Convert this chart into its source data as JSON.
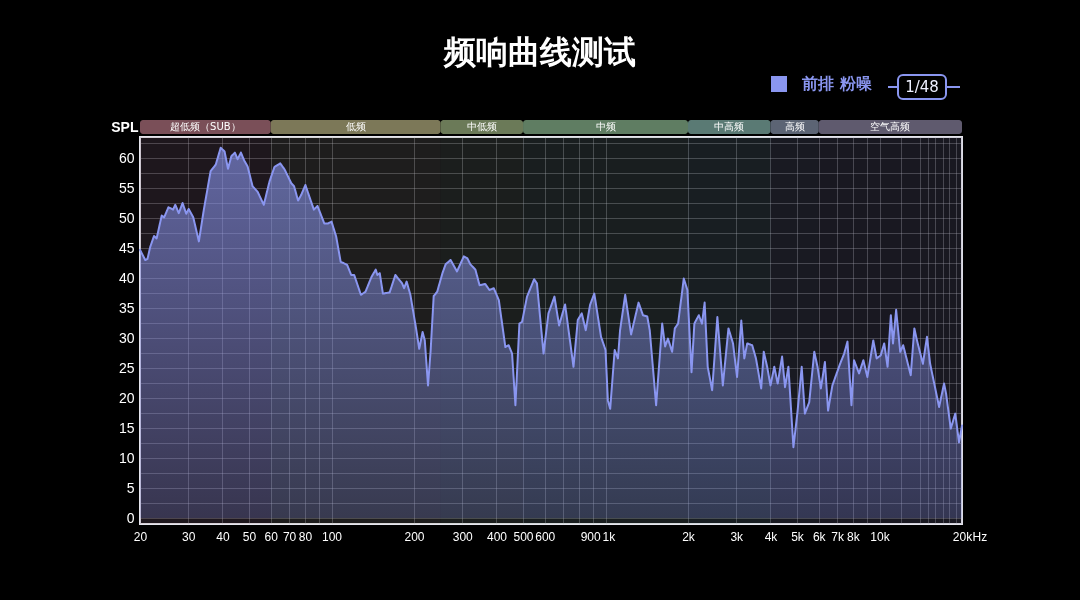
{
  "chart_data": {
    "type": "area",
    "title": "频响曲线测试",
    "ylabel": "SPL",
    "xlabel": "Hz",
    "x": [
      20,
      20.9,
      21.3,
      21.8,
      22.5,
      23.0,
      24.0,
      24.5,
      25.4,
      26.4,
      26.9,
      27.7,
      28.6,
      29.5,
      30.1,
      31.3,
      32.8,
      34.2,
      36.2,
      37.8,
      39.4,
      40.7,
      41.9,
      43.1,
      44.4,
      45.4,
      46.7,
      48.0,
      49.4,
      51.5,
      53.7,
      56.6,
      59.4,
      61.9,
      65.0,
      67.4,
      71.3,
      73.0,
      75.5,
      77.6,
      80.3,
      82.1,
      86.2,
      88.9,
      94.1,
      97.3,
      100,
      104,
      108,
      114,
      118,
      121,
      128,
      133,
      140,
      145,
      147,
      150,
      154,
      163,
      171,
      181,
      184,
      188,
      194,
      203,
      209,
      215,
      219,
      225,
      230,
      236,
      243,
      254,
      261,
      272,
      287,
      304,
      313,
      321,
      335,
      347,
      364,
      377,
      391,
      408,
      431,
      443,
      456,
      469,
      485,
      496,
      517,
      549,
      562,
      594,
      619,
      651,
      677,
      712,
      764,
      792,
      819,
      847,
      878,
      910,
      963,
      1000,
      1020,
      1040,
      1080,
      1110,
      1130,
      1180,
      1240,
      1320,
      1370,
      1420,
      1450,
      1530,
      1610,
      1650,
      1690,
      1750,
      1790,
      1840,
      1930,
      1990,
      2060,
      2110,
      2190,
      2250,
      2300,
      2360,
      2450,
      2560,
      2680,
      2810,
      2920,
      3020,
      3130,
      3210,
      3290,
      3430,
      3540,
      3700,
      3780,
      3890,
      4000,
      4130,
      4250,
      4410,
      4520,
      4650,
      4850,
      5020,
      5200,
      5340,
      5540,
      5780,
      5940,
      6110,
      6320,
      6490,
      6730,
      7180,
      7430,
      7640,
      7900,
      8070,
      8420,
      8730,
      9030,
      9490,
      9760,
      10100,
      10400,
      10700,
      11000,
      11200,
      11500,
      11900,
      12200,
      13000,
      13400,
      13700,
      14400,
      14900,
      15300,
      16500,
      17200,
      17500,
      18200,
      18900,
      19500,
      20000
    ],
    "series": [
      {
        "name": "前排 粉噪",
        "color": "#8a96f0",
        "values": [
          44.7,
          43.0,
          43.2,
          45.2,
          47.0,
          46.6,
          50.4,
          50.1,
          51.8,
          51.4,
          52.2,
          50.8,
          52.5,
          50.7,
          51.5,
          50.1,
          46.1,
          51.4,
          57.8,
          58.9,
          61.7,
          61.1,
          58.2,
          60.3,
          60.9,
          59.8,
          60.9,
          59.6,
          58.6,
          55.3,
          54.4,
          52.2,
          56.1,
          58.5,
          59.1,
          58.1,
          55.8,
          55.3,
          52.9,
          53.9,
          55.5,
          54.2,
          51.4,
          52.0,
          49.1,
          49.1,
          49.4,
          46.9,
          42.7,
          42.2,
          40.5,
          40.5,
          37.2,
          37.7,
          40.2,
          41.4,
          40.5,
          40.8,
          37.4,
          37.6,
          40.5,
          39.1,
          38.3,
          39.4,
          37.2,
          31.9,
          28.2,
          31.0,
          29.6,
          22.1,
          27.9,
          37.0,
          37.7,
          40.8,
          42.3,
          43.0,
          41.1,
          43.6,
          43.3,
          42.3,
          41.4,
          38.8,
          39.0,
          38.0,
          38.3,
          36.3,
          28.5,
          28.8,
          27.4,
          18.8,
          32.4,
          32.7,
          36.9,
          39.8,
          39.1,
          27.4,
          34.1,
          36.9,
          32.1,
          35.6,
          25.2,
          33.0,
          34.1,
          31.3,
          35.5,
          37.4,
          30.2,
          28.0,
          19.6,
          18.2,
          28.0,
          26.6,
          31.3,
          37.2,
          30.6,
          35.9,
          33.8,
          33.6,
          31.3,
          18.8,
          32.4,
          28.6,
          29.9,
          27.7,
          31.6,
          32.4,
          39.9,
          38.0,
          24.3,
          32.4,
          33.8,
          32.4,
          35.9,
          25.2,
          21.3,
          33.5,
          22.1,
          31.6,
          29.1,
          23.5,
          32.9,
          26.6,
          29.1,
          28.8,
          26.6,
          21.6,
          27.7,
          25.2,
          22.1,
          25.2,
          22.4,
          26.9,
          21.8,
          25.2,
          11.8,
          17.7,
          25.2,
          17.4,
          19.3,
          27.7,
          25.2,
          21.6,
          26.0,
          17.9,
          22.1,
          25.7,
          27.4,
          29.4,
          18.8,
          26.3,
          24.1,
          26.3,
          23.5,
          29.6,
          26.6,
          27.1,
          29.1,
          25.2,
          33.8,
          29.1,
          34.7,
          27.7,
          28.8,
          23.8,
          31.6,
          29.6,
          25.7,
          30.2,
          25.7,
          18.5,
          22.4,
          20.7,
          14.9,
          17.4,
          12.6,
          15.4
        ]
      }
    ],
    "xlim": [
      20,
      20000
    ],
    "ylim": [
      -1,
      63.5
    ],
    "log": "x",
    "grid": true,
    "legend": "top right",
    "xticks": [
      20,
      30,
      40,
      50,
      60,
      70,
      80,
      {
        "value": 90,
        "label": null
      },
      100,
      200,
      300,
      400,
      500,
      600,
      {
        "value": 700,
        "label": null
      },
      {
        "value": 800,
        "label": null
      },
      900,
      {
        "value": 1000,
        "label": "1k"
      },
      {
        "value": 2000,
        "label": "2k"
      },
      {
        "value": 3000,
        "label": "3k"
      },
      {
        "value": 4000,
        "label": "4k"
      },
      {
        "value": 5000,
        "label": "5k"
      },
      {
        "value": 6000,
        "label": "6k"
      },
      {
        "value": 7000,
        "label": "7k"
      },
      {
        "value": 8000,
        "label": "8k"
      },
      {
        "value": 9000,
        "label": null
      },
      {
        "value": 10000,
        "label": "10k"
      },
      {
        "value": 12000,
        "label": null
      },
      {
        "value": 14000,
        "label": null
      },
      {
        "value": 15000,
        "label": null
      },
      {
        "value": 16000,
        "label": null
      },
      {
        "value": 17000,
        "label": null
      },
      {
        "value": 18000,
        "label": null
      },
      {
        "value": 19000,
        "label": null
      },
      {
        "value": 20000,
        "label": "20k"
      }
    ],
    "yticks": [
      0,
      {
        "value": 2.5,
        "label": null
      },
      5,
      {
        "value": 7.5,
        "label": null
      },
      10,
      {
        "value": 12.5,
        "label": null
      },
      15,
      {
        "value": 17.5,
        "label": null
      },
      20,
      {
        "value": 22.5,
        "label": null
      },
      25,
      {
        "value": 27.5,
        "label": null
      },
      30,
      {
        "value": 32.5,
        "label": null
      },
      35,
      {
        "value": 37.5,
        "label": null
      },
      40,
      {
        "value": 42.5,
        "label": null
      },
      45,
      {
        "value": 47.5,
        "label": null
      },
      50,
      {
        "value": 52.5,
        "label": null
      },
      55,
      {
        "value": 57.5,
        "label": null
      },
      60,
      {
        "value": 62.5,
        "label": null
      }
    ],
    "bands": [
      {
        "axis": "x",
        "from": 20,
        "to": 60,
        "label": "超低频（SUB）",
        "color": "#7a4f58"
      },
      {
        "axis": "x",
        "from": 60,
        "to": 250,
        "label": "低频",
        "color": "#7c7858"
      },
      {
        "axis": "x",
        "from": 250,
        "to": 500,
        "label": "中低频",
        "color": "#6b7a58"
      },
      {
        "axis": "x",
        "from": 500,
        "to": 2000,
        "label": "中频",
        "color": "#5f7d62"
      },
      {
        "axis": "x",
        "from": 2000,
        "to": 4000,
        "label": "中高频",
        "color": "#5a7a74"
      },
      {
        "axis": "x",
        "from": 4000,
        "to": 6000,
        "label": "高频",
        "color": "#5c6474"
      },
      {
        "axis": "x",
        "from": 6000,
        "to": 20000,
        "label": "空气高频",
        "color": "#5f5a6e"
      }
    ],
    "annotations": [
      "1/48"
    ]
  }
}
